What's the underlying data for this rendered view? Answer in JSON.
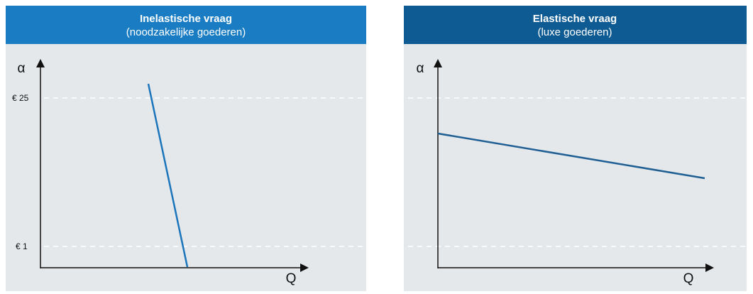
{
  "panels": [
    {
      "title": "Inelastische vraag",
      "subtitle": "(noodzakelijke goederen)",
      "y_label": "α",
      "x_label": "Q",
      "price_labels": [
        "€ 25",
        "€ 1"
      ]
    },
    {
      "title": "Elastische vraag",
      "subtitle": "(luxe goederen)",
      "y_label": "α",
      "x_label": "Q"
    }
  ]
}
